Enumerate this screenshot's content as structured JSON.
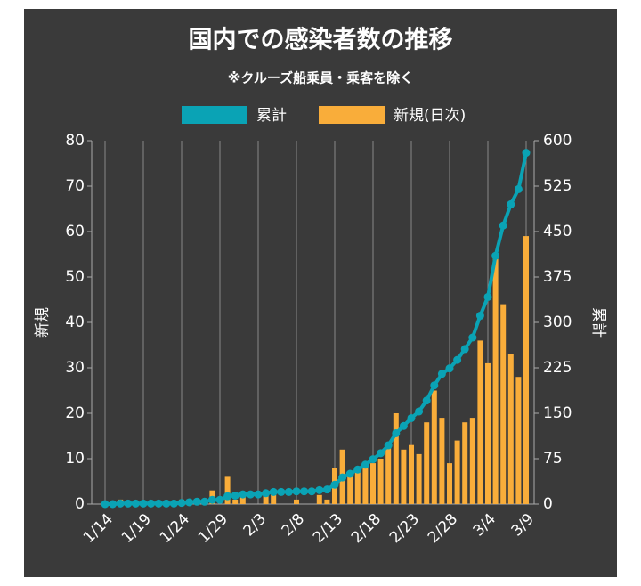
{
  "chart_data": {
    "type": "bar-line",
    "title": "国内での感染者数の推移",
    "subtitle": "※クルーズ船乗員・乗客を除く",
    "ylabel": "新規",
    "y2label": "累計",
    "categories": [
      "1/14",
      null,
      null,
      null,
      null,
      "1/19",
      null,
      null,
      null,
      null,
      "1/24",
      null,
      null,
      null,
      null,
      "1/29",
      null,
      null,
      null,
      null,
      "2/3",
      null,
      null,
      null,
      null,
      "2/8",
      null,
      null,
      null,
      null,
      "2/13",
      null,
      null,
      null,
      null,
      "2/18",
      null,
      null,
      null,
      null,
      "2/23",
      null,
      null,
      null,
      null,
      "2/28",
      null,
      null,
      null,
      null,
      "3/4",
      null,
      null,
      null,
      null,
      "3/9"
    ],
    "series": [
      {
        "name": "累計",
        "type": "line",
        "axis": "y2",
        "color": "#0aa3b5",
        "values": [
          0,
          0,
          1,
          1,
          1,
          1,
          1,
          1,
          1,
          1,
          2,
          3,
          4,
          4,
          7,
          7,
          13,
          14,
          16,
          16,
          16,
          18,
          20,
          20,
          20,
          21,
          21,
          21,
          23,
          24,
          32,
          44,
          50,
          57,
          65,
          74,
          84,
          97,
          117,
          129,
          142,
          153,
          171,
          196,
          215,
          224,
          238,
          256,
          275,
          311,
          342,
          410,
          460,
          495,
          520,
          580
        ]
      },
      {
        "name": "新規(日次)",
        "type": "bar",
        "color": "#f9ad3a",
        "values": [
          0,
          0,
          1,
          0,
          0,
          0,
          0,
          0,
          0,
          0,
          1,
          1,
          1,
          0,
          3,
          0,
          6,
          1,
          2,
          0,
          0,
          2,
          2,
          0,
          0,
          1,
          0,
          0,
          2,
          1,
          8,
          12,
          6,
          7,
          8,
          9,
          10,
          13,
          20,
          12,
          13,
          11,
          18,
          25,
          19,
          9,
          14,
          18,
          19,
          36,
          31,
          54,
          44,
          33,
          28,
          59
        ]
      }
    ],
    "ylim": [
      0,
      80
    ],
    "yticks": [
      0,
      10,
      20,
      30,
      40,
      50,
      60,
      70,
      80
    ],
    "y2lim": [
      0,
      600
    ],
    "y2ticks": [
      0,
      75,
      150,
      225,
      300,
      375,
      450,
      525,
      600
    ],
    "grid": true
  }
}
